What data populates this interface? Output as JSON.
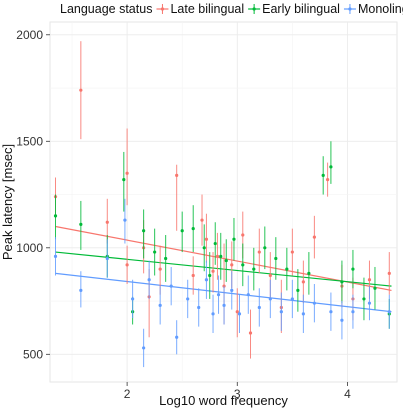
{
  "chart_data": {
    "type": "scatter",
    "xlabel": "Log10 word frequency",
    "ylabel": "Peak latency [msec]",
    "xlim": [
      1.3,
      4.45
    ],
    "ylim": [
      370,
      2060
    ],
    "xticks": [
      2,
      3,
      4
    ],
    "yticks": [
      500,
      1000,
      1500,
      2000
    ],
    "grid": true,
    "legend": {
      "title": "Language status",
      "placement": "top"
    },
    "series": [
      {
        "name": "Late bilingual",
        "color": "#F8766D",
        "fit": {
          "x": [
            1.35,
            4.4
          ],
          "y": [
            1100,
            800
          ]
        },
        "points": [
          {
            "x": 1.35,
            "y": 1240,
            "lo": 1140,
            "hi": 1330
          },
          {
            "x": 1.58,
            "y": 1740,
            "lo": 1510,
            "hi": 1970
          },
          {
            "x": 1.82,
            "y": 1120,
            "lo": 1020,
            "hi": 1230
          },
          {
            "x": 2.0,
            "y": 920,
            "lo": 830,
            "hi": 1010
          },
          {
            "x": 2.0,
            "y": 1350,
            "lo": 1200,
            "hi": 1560
          },
          {
            "x": 2.15,
            "y": 1000,
            "lo": 880,
            "hi": 1130
          },
          {
            "x": 2.2,
            "y": 770,
            "lo": 580,
            "hi": 900
          },
          {
            "x": 2.3,
            "y": 900,
            "lo": 780,
            "hi": 1010
          },
          {
            "x": 2.45,
            "y": 1340,
            "lo": 1080,
            "hi": 1390
          },
          {
            "x": 2.6,
            "y": 870,
            "lo": 780,
            "hi": 960
          },
          {
            "x": 2.68,
            "y": 1130,
            "lo": 1010,
            "hi": 1250
          },
          {
            "x": 2.72,
            "y": 1040,
            "lo": 930,
            "hi": 1160
          },
          {
            "x": 2.78,
            "y": 890,
            "lo": 790,
            "hi": 980
          },
          {
            "x": 2.82,
            "y": 960,
            "lo": 850,
            "hi": 1070
          },
          {
            "x": 2.88,
            "y": 820,
            "lo": 640,
            "hi": 1020
          },
          {
            "x": 2.95,
            "y": 920,
            "lo": 810,
            "hi": 1030
          },
          {
            "x": 3.0,
            "y": 700,
            "lo": 580,
            "hi": 810
          },
          {
            "x": 3.05,
            "y": 1060,
            "lo": 950,
            "hi": 1170
          },
          {
            "x": 3.12,
            "y": 600,
            "lo": 480,
            "hi": 710
          },
          {
            "x": 3.2,
            "y": 980,
            "lo": 880,
            "hi": 1090
          },
          {
            "x": 3.3,
            "y": 870,
            "lo": 760,
            "hi": 980
          },
          {
            "x": 3.4,
            "y": 720,
            "lo": 600,
            "hi": 850
          },
          {
            "x": 3.5,
            "y": 980,
            "lo": 870,
            "hi": 1090
          },
          {
            "x": 3.6,
            "y": 840,
            "lo": 740,
            "hi": 940
          },
          {
            "x": 3.7,
            "y": 1050,
            "lo": 950,
            "hi": 1150
          },
          {
            "x": 3.82,
            "y": 1320,
            "lo": 1240,
            "hi": 1400
          },
          {
            "x": 3.95,
            "y": 820,
            "lo": 720,
            "hi": 920
          },
          {
            "x": 4.05,
            "y": 760,
            "lo": 660,
            "hi": 860
          },
          {
            "x": 4.2,
            "y": 850,
            "lo": 760,
            "hi": 940
          },
          {
            "x": 4.38,
            "y": 880,
            "lo": 780,
            "hi": 980
          }
        ]
      },
      {
        "name": "Early bilingual",
        "color": "#00BA38",
        "fit": {
          "x": [
            1.35,
            4.4
          ],
          "y": [
            980,
            820
          ]
        },
        "points": [
          {
            "x": 1.35,
            "y": 1150,
            "lo": 1040,
            "hi": 1250
          },
          {
            "x": 1.58,
            "y": 1110,
            "lo": 990,
            "hi": 1220
          },
          {
            "x": 1.82,
            "y": 960,
            "lo": 860,
            "hi": 1060
          },
          {
            "x": 1.97,
            "y": 1320,
            "lo": 1170,
            "hi": 1450
          },
          {
            "x": 2.05,
            "y": 700,
            "lo": 640,
            "hi": 770
          },
          {
            "x": 2.15,
            "y": 1080,
            "lo": 950,
            "hi": 1180
          },
          {
            "x": 2.25,
            "y": 980,
            "lo": 870,
            "hi": 1090
          },
          {
            "x": 2.35,
            "y": 950,
            "lo": 840,
            "hi": 1060
          },
          {
            "x": 2.5,
            "y": 1080,
            "lo": 980,
            "hi": 1170
          },
          {
            "x": 2.6,
            "y": 1090,
            "lo": 980,
            "hi": 1200
          },
          {
            "x": 2.7,
            "y": 1000,
            "lo": 890,
            "hi": 1110
          },
          {
            "x": 2.75,
            "y": 870,
            "lo": 760,
            "hi": 980
          },
          {
            "x": 2.8,
            "y": 1020,
            "lo": 920,
            "hi": 1120
          },
          {
            "x": 2.85,
            "y": 960,
            "lo": 850,
            "hi": 1070
          },
          {
            "x": 2.9,
            "y": 940,
            "lo": 840,
            "hi": 1040
          },
          {
            "x": 2.97,
            "y": 1040,
            "lo": 940,
            "hi": 1140
          },
          {
            "x": 3.05,
            "y": 920,
            "lo": 820,
            "hi": 1020
          },
          {
            "x": 3.15,
            "y": 900,
            "lo": 800,
            "hi": 1000
          },
          {
            "x": 3.25,
            "y": 1000,
            "lo": 900,
            "hi": 1100
          },
          {
            "x": 3.35,
            "y": 950,
            "lo": 850,
            "hi": 1050
          },
          {
            "x": 3.45,
            "y": 900,
            "lo": 800,
            "hi": 1000
          },
          {
            "x": 3.55,
            "y": 800,
            "lo": 700,
            "hi": 900
          },
          {
            "x": 3.65,
            "y": 880,
            "lo": 780,
            "hi": 980
          },
          {
            "x": 3.78,
            "y": 1340,
            "lo": 1250,
            "hi": 1430
          },
          {
            "x": 3.85,
            "y": 1380,
            "lo": 1300,
            "hi": 1500
          },
          {
            "x": 3.95,
            "y": 840,
            "lo": 740,
            "hi": 940
          },
          {
            "x": 4.05,
            "y": 900,
            "lo": 810,
            "hi": 990
          },
          {
            "x": 4.15,
            "y": 760,
            "lo": 660,
            "hi": 860
          },
          {
            "x": 4.25,
            "y": 810,
            "lo": 710,
            "hi": 910
          },
          {
            "x": 4.38,
            "y": 690,
            "lo": 620,
            "hi": 760
          }
        ]
      },
      {
        "name": "Monolingual",
        "color": "#619CFF",
        "fit": {
          "x": [
            1.35,
            4.4
          ],
          "y": [
            880,
            700
          ]
        },
        "points": [
          {
            "x": 1.35,
            "y": 960,
            "lo": 870,
            "hi": 1050
          },
          {
            "x": 1.58,
            "y": 800,
            "lo": 720,
            "hi": 890
          },
          {
            "x": 1.82,
            "y": 950,
            "lo": 860,
            "hi": 1040
          },
          {
            "x": 1.98,
            "y": 1130,
            "lo": 1020,
            "hi": 1230
          },
          {
            "x": 2.05,
            "y": 760,
            "lo": 670,
            "hi": 850
          },
          {
            "x": 2.15,
            "y": 530,
            "lo": 440,
            "hi": 620
          },
          {
            "x": 2.2,
            "y": 850,
            "lo": 760,
            "hi": 940
          },
          {
            "x": 2.3,
            "y": 730,
            "lo": 640,
            "hi": 820
          },
          {
            "x": 2.4,
            "y": 820,
            "lo": 730,
            "hi": 910
          },
          {
            "x": 2.45,
            "y": 580,
            "lo": 500,
            "hi": 660
          },
          {
            "x": 2.55,
            "y": 760,
            "lo": 670,
            "hi": 850
          },
          {
            "x": 2.65,
            "y": 720,
            "lo": 630,
            "hi": 810
          },
          {
            "x": 2.72,
            "y": 850,
            "lo": 760,
            "hi": 940
          },
          {
            "x": 2.78,
            "y": 690,
            "lo": 600,
            "hi": 780
          },
          {
            "x": 2.83,
            "y": 780,
            "lo": 690,
            "hi": 870
          },
          {
            "x": 2.88,
            "y": 730,
            "lo": 640,
            "hi": 820
          },
          {
            "x": 2.95,
            "y": 800,
            "lo": 710,
            "hi": 890
          },
          {
            "x": 3.02,
            "y": 690,
            "lo": 600,
            "hi": 780
          },
          {
            "x": 3.1,
            "y": 780,
            "lo": 690,
            "hi": 870
          },
          {
            "x": 3.2,
            "y": 720,
            "lo": 630,
            "hi": 810
          },
          {
            "x": 3.3,
            "y": 760,
            "lo": 670,
            "hi": 850
          },
          {
            "x": 3.4,
            "y": 700,
            "lo": 610,
            "hi": 790
          },
          {
            "x": 3.5,
            "y": 760,
            "lo": 670,
            "hi": 850
          },
          {
            "x": 3.6,
            "y": 690,
            "lo": 600,
            "hi": 780
          },
          {
            "x": 3.7,
            "y": 740,
            "lo": 650,
            "hi": 830
          },
          {
            "x": 3.85,
            "y": 700,
            "lo": 610,
            "hi": 790
          },
          {
            "x": 3.95,
            "y": 660,
            "lo": 570,
            "hi": 750
          },
          {
            "x": 4.05,
            "y": 700,
            "lo": 620,
            "hi": 780
          },
          {
            "x": 4.2,
            "y": 740,
            "lo": 660,
            "hi": 820
          },
          {
            "x": 4.38,
            "y": 700,
            "lo": 620,
            "hi": 780
          }
        ]
      }
    ]
  }
}
